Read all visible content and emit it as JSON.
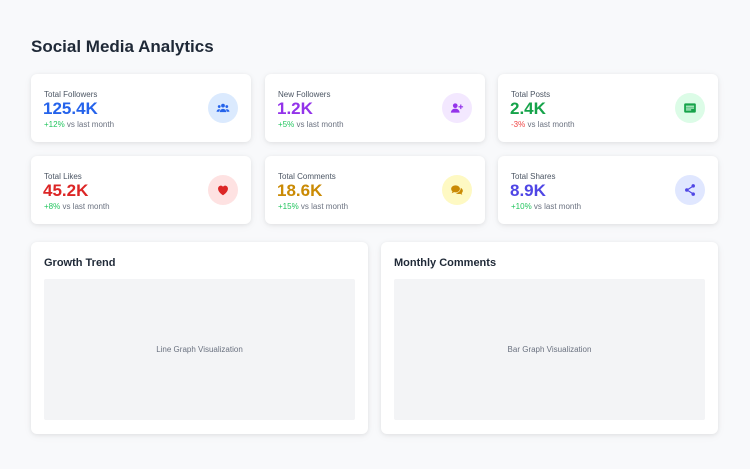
{
  "header": {
    "title": "Social Media Analytics"
  },
  "stats": [
    {
      "label": "Total Followers",
      "value": "125.4K",
      "delta": "+12%",
      "suffix": " vs last month",
      "value_color": "#2563eb",
      "icon": "users-icon",
      "icon_bg": "#dbeafe",
      "icon_color": "#2563eb"
    },
    {
      "label": "New Followers",
      "value": "1.2K",
      "delta": "+5%",
      "suffix": " vs last month",
      "value_color": "#9333ea",
      "icon": "user-plus-icon",
      "icon_bg": "#f3e8ff",
      "icon_color": "#9333ea"
    },
    {
      "label": "Total Posts",
      "value": "2.4K",
      "delta": "-3%",
      "suffix": " vs last month",
      "value_color": "#16a34a",
      "icon": "posts-icon",
      "icon_bg": "#dcfce7",
      "icon_color": "#16a34a"
    },
    {
      "label": "Total Likes",
      "value": "45.2K",
      "delta": "+8%",
      "suffix": " vs last month",
      "value_color": "#dc2626",
      "icon": "heart-icon",
      "icon_bg": "#fee2e2",
      "icon_color": "#dc2626"
    },
    {
      "label": "Total Comments",
      "value": "18.6K",
      "delta": "+15%",
      "suffix": " vs last month",
      "value_color": "#ca8a04",
      "icon": "comments-icon",
      "icon_bg": "#fef9c3",
      "icon_color": "#ca8a04"
    },
    {
      "label": "Total Shares",
      "value": "8.9K",
      "delta": "+10%",
      "suffix": " vs last month",
      "value_color": "#4f46e5",
      "icon": "share-icon",
      "icon_bg": "#e0e7ff",
      "icon_color": "#4f46e5"
    }
  ],
  "charts": [
    {
      "title": "Growth Trend",
      "placeholder": "Line Graph Visualization"
    },
    {
      "title": "Monthly Comments",
      "placeholder": "Bar Graph Visualization"
    }
  ]
}
